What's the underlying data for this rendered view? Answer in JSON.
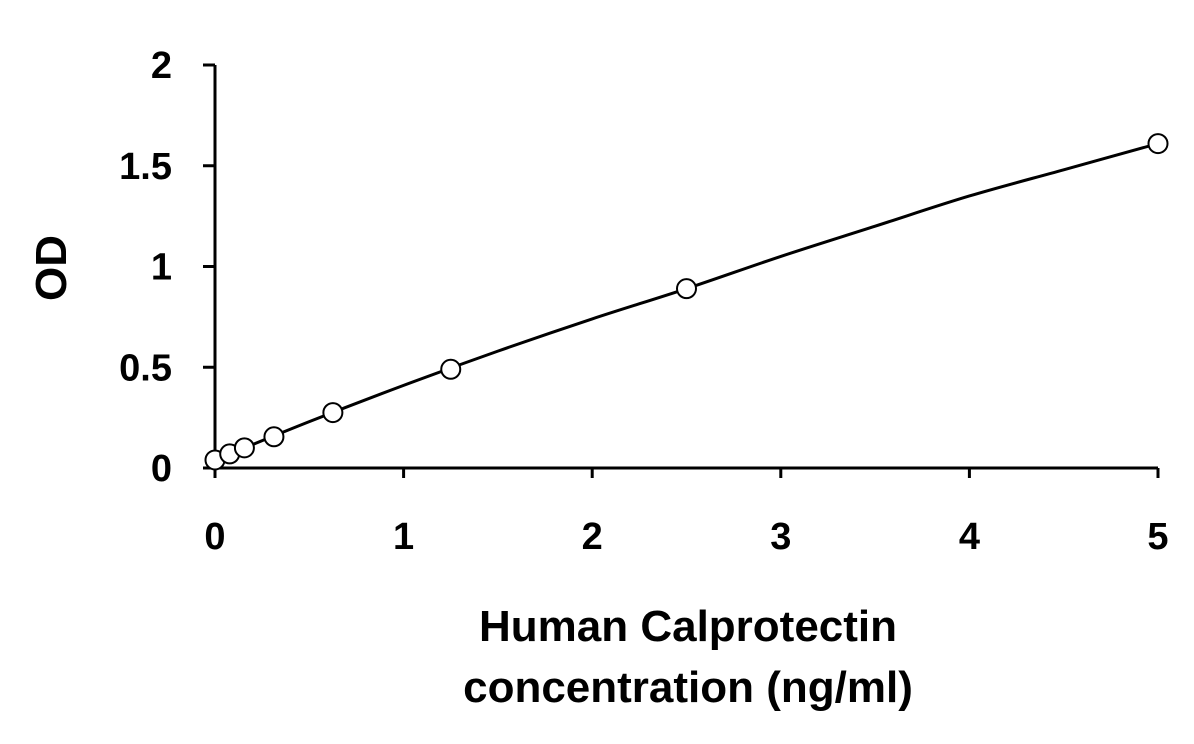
{
  "chart_data": {
    "type": "scatter",
    "title": "",
    "xlabel_lines": [
      "Human Calprotectin",
      "concentration (ng/ml)"
    ],
    "ylabel": "OD",
    "xlim": [
      0,
      5
    ],
    "ylim": [
      0,
      2
    ],
    "x_ticks": [
      0,
      1,
      2,
      3,
      4,
      5
    ],
    "y_ticks": [
      0,
      0.5,
      1,
      1.5,
      2
    ],
    "grid": false,
    "legend": "none",
    "series": [
      {
        "points": [
          {
            "x": 0,
            "y": 0.04
          },
          {
            "x": 0.078,
            "y": 0.07
          },
          {
            "x": 0.156,
            "y": 0.1
          },
          {
            "x": 0.3125,
            "y": 0.155
          },
          {
            "x": 0.625,
            "y": 0.275
          },
          {
            "x": 1.25,
            "y": 0.49
          },
          {
            "x": 2.5,
            "y": 0.89
          },
          {
            "x": 5,
            "y": 1.61
          }
        ],
        "marker": "open-circle",
        "color": "#000000"
      }
    ],
    "fit_curve": {
      "type": "smooth",
      "color": "#000000",
      "points": [
        {
          "x": 0,
          "y": 0.04
        },
        {
          "x": 0.5,
          "y": 0.23
        },
        {
          "x": 1,
          "y": 0.41
        },
        {
          "x": 1.5,
          "y": 0.58
        },
        {
          "x": 2,
          "y": 0.74
        },
        {
          "x": 2.5,
          "y": 0.89
        },
        {
          "x": 3,
          "y": 1.05
        },
        {
          "x": 3.5,
          "y": 1.2
        },
        {
          "x": 4,
          "y": 1.35
        },
        {
          "x": 4.5,
          "y": 1.48
        },
        {
          "x": 5,
          "y": 1.61
        }
      ]
    }
  }
}
